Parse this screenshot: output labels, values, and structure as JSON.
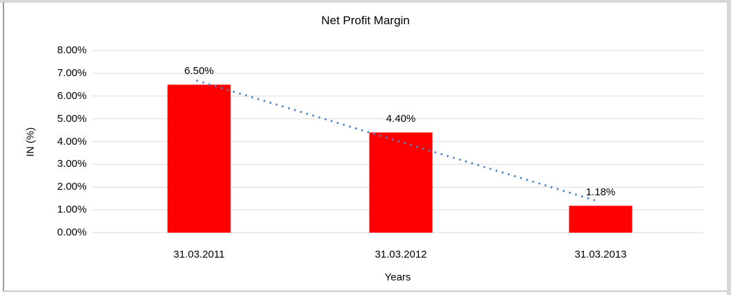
{
  "chart_data": {
    "type": "bar",
    "title": "Net Profit Margin",
    "xlabel": "Years",
    "ylabel": "IN (%)",
    "categories": [
      "31.03.2011",
      "31.03.2012",
      "31.03.2013"
    ],
    "values": [
      6.5,
      4.4,
      1.18
    ],
    "data_labels": [
      "6.50%",
      "4.40%",
      "1.18%"
    ],
    "y_ticks": [
      "0.00%",
      "1.00%",
      "2.00%",
      "3.00%",
      "4.00%",
      "5.00%",
      "6.00%",
      "7.00%",
      "8.00%"
    ],
    "ylim": [
      0,
      8
    ],
    "grid": "horizontal-only",
    "legend": "none",
    "trendline": {
      "type": "linear",
      "style": "dotted"
    },
    "colors": {
      "bar": "#FF0000",
      "trendline": "#4E86C6",
      "gridline": "#D9D9D9",
      "text": "#000000",
      "background": "#FFFFFF"
    }
  }
}
